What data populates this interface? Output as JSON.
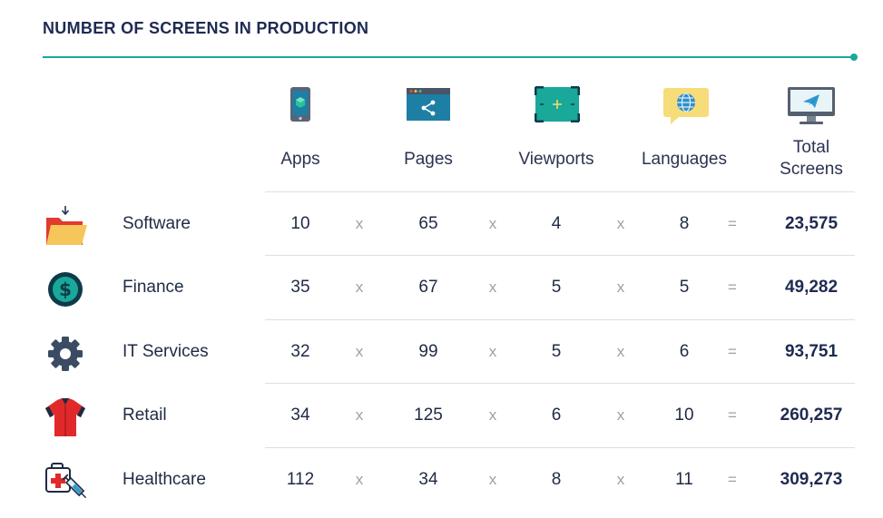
{
  "title": "NUMBER OF SCREENS IN PRODUCTION",
  "columns": [
    {
      "key": "apps",
      "label": "Apps",
      "icon": "mobile-phone-icon"
    },
    {
      "key": "pages",
      "label": "Pages",
      "icon": "web-page-share-icon"
    },
    {
      "key": "viewports",
      "label": "Viewports",
      "icon": "viewport-frame-icon"
    },
    {
      "key": "languages",
      "label": "Languages",
      "icon": "globe-speech-bubble-icon"
    },
    {
      "key": "total",
      "label_line1": "Total",
      "label_line2": "Screens",
      "icon": "monitor-paper-plane-icon"
    }
  ],
  "operators": {
    "times": "x",
    "equals": "="
  },
  "rows": [
    {
      "label": "Software",
      "icon": "folder-icon",
      "apps": "10",
      "pages": "65",
      "viewports": "4",
      "languages": "8",
      "total": "23,575"
    },
    {
      "label": "Finance",
      "icon": "dollar-coin-icon",
      "apps": "35",
      "pages": "67",
      "viewports": "5",
      "languages": "5",
      "total": "49,282"
    },
    {
      "label": "IT Services",
      "icon": "gear-icon",
      "apps": "32",
      "pages": "99",
      "viewports": "5",
      "languages": "6",
      "total": "93,751"
    },
    {
      "label": "Retail",
      "icon": "shirt-icon",
      "apps": "34",
      "pages": "125",
      "viewports": "6",
      "languages": "10",
      "total": "260,257"
    },
    {
      "label": "Healthcare",
      "icon": "medical-kit-syringe-icon",
      "apps": "112",
      "pages": "34",
      "viewports": "8",
      "languages": "11",
      "total": "309,273"
    }
  ],
  "colors": {
    "accent": "#1aa89a",
    "title": "#1f2a52",
    "divider": "#dcdfe6"
  },
  "chart_data": {
    "type": "table",
    "title": "NUMBER OF SCREENS IN PRODUCTION",
    "columns": [
      "Apps",
      "Pages",
      "Viewports",
      "Languages",
      "Total Screens"
    ],
    "row_labels": [
      "Software",
      "Finance",
      "IT Services",
      "Retail",
      "Healthcare"
    ],
    "values": [
      [
        10,
        65,
        4,
        8,
        23575
      ],
      [
        35,
        67,
        5,
        5,
        49282
      ],
      [
        32,
        99,
        5,
        6,
        93751
      ],
      [
        34,
        125,
        6,
        10,
        260257
      ],
      [
        112,
        34,
        8,
        11,
        309273
      ]
    ]
  }
}
